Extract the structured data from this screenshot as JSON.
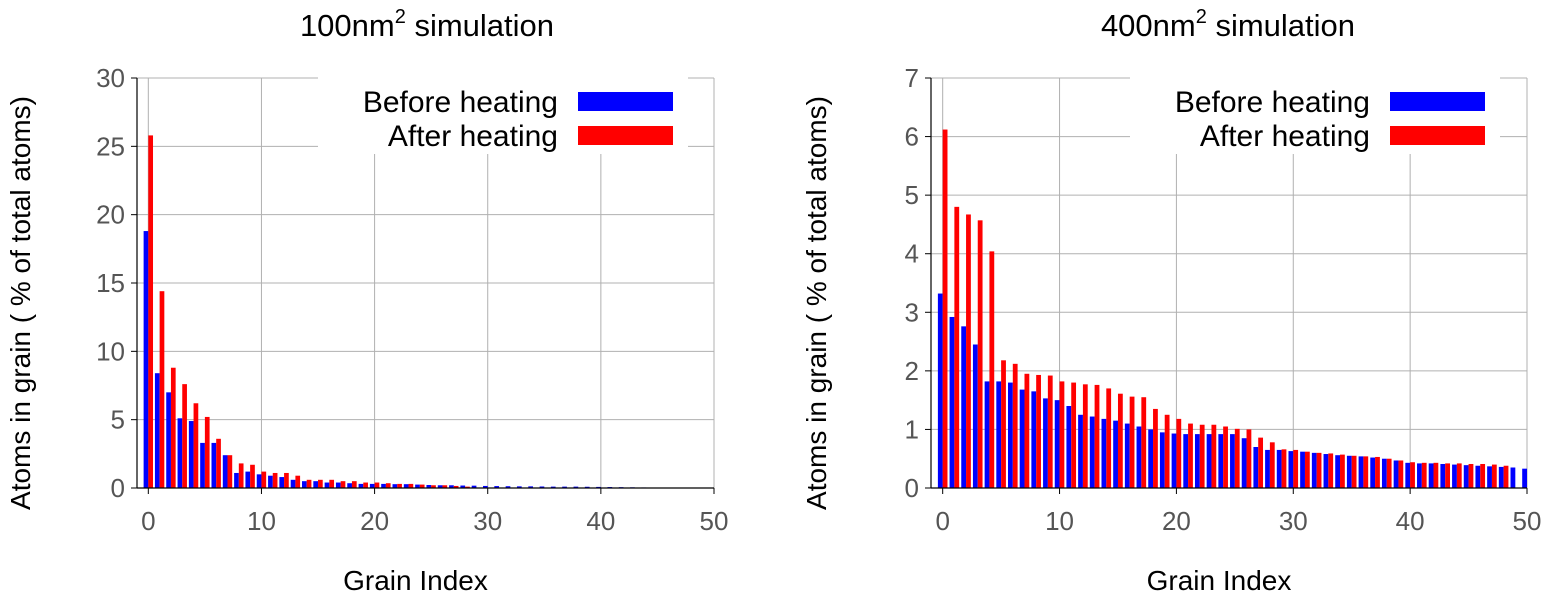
{
  "chart_data": [
    {
      "type": "bar",
      "title": {
        "main": "100nm",
        "superscript": "2",
        "suffix": " simulation"
      },
      "xlabel": "Grain Index",
      "ylabel": "Atoms in grain ( % of total atoms)",
      "xlim": [
        -1,
        50
      ],
      "ylim": [
        0,
        30
      ],
      "xticks": [
        0,
        10,
        20,
        30,
        40,
        50
      ],
      "yticks": [
        0,
        5,
        10,
        15,
        20,
        25,
        30
      ],
      "grid": true,
      "legend_position": "top-right",
      "series": [
        {
          "name": "Before heating",
          "color": "#0000ff",
          "x": [
            0,
            1,
            2,
            3,
            4,
            5,
            6,
            7,
            8,
            9,
            10,
            11,
            12,
            13,
            14,
            15,
            16,
            17,
            18,
            19,
            20,
            21,
            22,
            23,
            24,
            25,
            26,
            27,
            28,
            29,
            30,
            31,
            32,
            33,
            34,
            35,
            36,
            37,
            38,
            39,
            40,
            41,
            42,
            43,
            44,
            45,
            46,
            47,
            48,
            49
          ],
          "values": [
            18.8,
            8.4,
            7.0,
            5.1,
            4.9,
            3.3,
            3.3,
            2.4,
            1.1,
            1.2,
            1.0,
            0.9,
            0.8,
            0.6,
            0.5,
            0.5,
            0.4,
            0.4,
            0.35,
            0.3,
            0.3,
            0.3,
            0.28,
            0.28,
            0.25,
            0.22,
            0.2,
            0.2,
            0.18,
            0.17,
            0.15,
            0.14,
            0.13,
            0.12,
            0.12,
            0.11,
            0.1,
            0.1,
            0.1,
            0.09,
            0.08,
            0.07,
            0.06,
            0.05,
            0.04,
            0.03,
            0.03,
            0.02,
            0.02,
            0.01
          ]
        },
        {
          "name": "After heating",
          "color": "#ff0000",
          "x": [
            0,
            1,
            2,
            3,
            4,
            5,
            6,
            7,
            8,
            9,
            10,
            11,
            12,
            13,
            14,
            15,
            16,
            17,
            18,
            19,
            20,
            21,
            22,
            23,
            24,
            25,
            26,
            27,
            28
          ],
          "values": [
            25.8,
            14.4,
            8.8,
            7.6,
            6.2,
            5.2,
            3.6,
            2.4,
            1.8,
            1.7,
            1.2,
            1.1,
            1.1,
            0.9,
            0.6,
            0.6,
            0.6,
            0.5,
            0.5,
            0.4,
            0.4,
            0.35,
            0.3,
            0.3,
            0.25,
            0.2,
            0.2,
            0.15,
            0.1
          ]
        }
      ]
    },
    {
      "type": "bar",
      "title": {
        "main": "400nm",
        "superscript": "2",
        "suffix": " simulation"
      },
      "xlabel": "Grain Index",
      "ylabel": "Atoms in grain ( % of total atoms)",
      "xlim": [
        -1,
        50
      ],
      "ylim": [
        0,
        7
      ],
      "xticks": [
        0,
        10,
        20,
        30,
        40,
        50
      ],
      "yticks": [
        0,
        1,
        2,
        3,
        4,
        5,
        6,
        7
      ],
      "grid": true,
      "legend_position": "top-right",
      "series": [
        {
          "name": "Before heating",
          "color": "#0000ff",
          "x": [
            0,
            1,
            2,
            3,
            4,
            5,
            6,
            7,
            8,
            9,
            10,
            11,
            12,
            13,
            14,
            15,
            16,
            17,
            18,
            19,
            20,
            21,
            22,
            23,
            24,
            25,
            26,
            27,
            28,
            29,
            30,
            31,
            32,
            33,
            34,
            35,
            36,
            37,
            38,
            39,
            40,
            41,
            42,
            43,
            44,
            45,
            46,
            47,
            48,
            49,
            50
          ],
          "values": [
            3.32,
            2.92,
            2.76,
            2.45,
            1.82,
            1.82,
            1.8,
            1.68,
            1.65,
            1.53,
            1.5,
            1.4,
            1.25,
            1.22,
            1.18,
            1.15,
            1.1,
            1.05,
            1.0,
            0.95,
            0.93,
            0.92,
            0.92,
            0.92,
            0.92,
            0.92,
            0.85,
            0.7,
            0.65,
            0.65,
            0.63,
            0.62,
            0.6,
            0.58,
            0.56,
            0.55,
            0.54,
            0.52,
            0.5,
            0.47,
            0.43,
            0.42,
            0.42,
            0.41,
            0.4,
            0.39,
            0.38,
            0.37,
            0.36,
            0.35,
            0.33
          ]
        },
        {
          "name": "After heating",
          "color": "#ff0000",
          "x": [
            0,
            1,
            2,
            3,
            4,
            5,
            6,
            7,
            8,
            9,
            10,
            11,
            12,
            13,
            14,
            15,
            16,
            17,
            18,
            19,
            20,
            21,
            22,
            23,
            24,
            25,
            26,
            27,
            28,
            29,
            30,
            31,
            32,
            33,
            34,
            35,
            36,
            37,
            38,
            39,
            40,
            41,
            42,
            43,
            44,
            45,
            46,
            47,
            48
          ],
          "values": [
            6.12,
            4.8,
            4.67,
            4.57,
            4.04,
            2.18,
            2.12,
            1.95,
            1.93,
            1.92,
            1.82,
            1.8,
            1.77,
            1.76,
            1.7,
            1.61,
            1.56,
            1.55,
            1.35,
            1.25,
            1.18,
            1.1,
            1.08,
            1.08,
            1.05,
            1.01,
            1.0,
            0.86,
            0.78,
            0.66,
            0.65,
            0.62,
            0.6,
            0.59,
            0.57,
            0.55,
            0.54,
            0.53,
            0.5,
            0.47,
            0.44,
            0.43,
            0.43,
            0.42,
            0.42,
            0.41,
            0.41,
            0.4,
            0.38
          ]
        }
      ]
    }
  ]
}
